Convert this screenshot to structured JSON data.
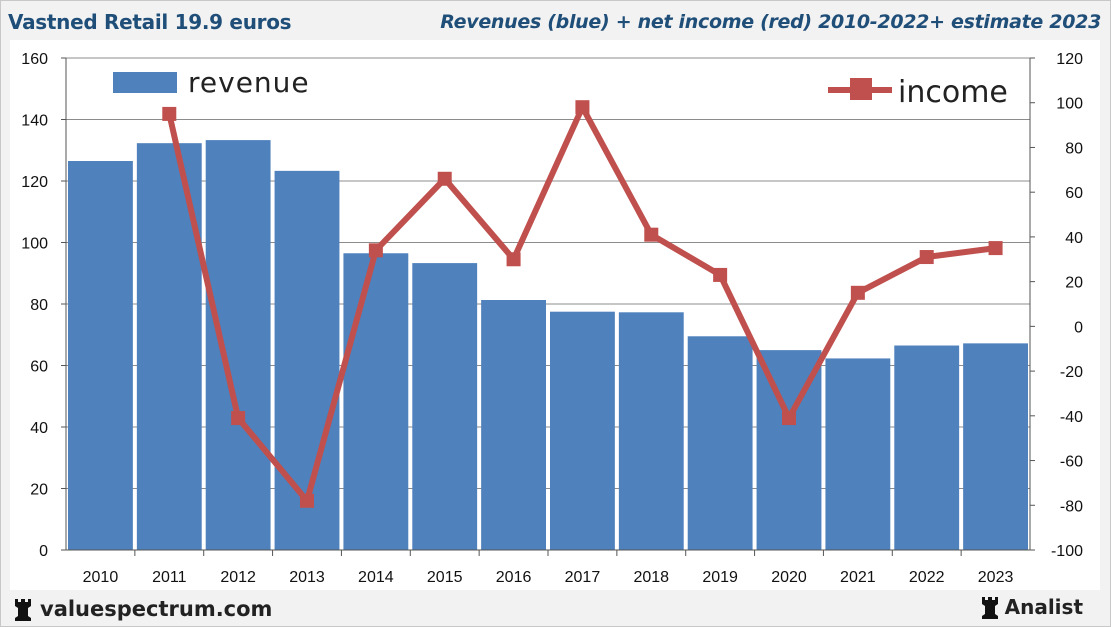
{
  "header": {
    "title_left": "Vastned Retail 19.9 euros",
    "title_right": "Revenues (blue) + net income (red) 2010-2022+ estimate 2023"
  },
  "footer": {
    "site": "valuespectrum.com",
    "brand": "Analist",
    "site_icon": "rook-icon",
    "brand_icon": "rook-icon"
  },
  "colors": {
    "revenue": "#4f81bd",
    "income": "#c0504d",
    "title": "#1f4e79"
  },
  "chart_data": {
    "type": "bar+line",
    "categories": [
      "2010",
      "2011",
      "2012",
      "2013",
      "2014",
      "2015",
      "2016",
      "2017",
      "2018",
      "2019",
      "2020",
      "2021",
      "2022",
      "2023"
    ],
    "series": [
      {
        "name": "revenue",
        "type": "bar",
        "axis": "left",
        "values": [
          126.5,
          132.3,
          133.3,
          123.3,
          96.5,
          93.3,
          81.3,
          77.5,
          77.3,
          69.5,
          65.0,
          62.3,
          66.5,
          67.2
        ]
      },
      {
        "name": "income",
        "type": "line",
        "axis": "right",
        "values": [
          null,
          95,
          -41,
          -78,
          34,
          66,
          30,
          98,
          41,
          23,
          -41,
          15,
          31,
          35
        ]
      }
    ],
    "y_left": {
      "min": 0,
      "max": 160,
      "ticks": [
        "0",
        "20",
        "40",
        "60",
        "80",
        "100",
        "120",
        "140",
        "160"
      ]
    },
    "y_right": {
      "min": -100,
      "max": 120,
      "ticks": [
        "-100",
        "-80",
        "-60",
        "-40",
        "-20",
        "0",
        "20",
        "40",
        "60",
        "80",
        "100",
        "120"
      ]
    },
    "legend": {
      "revenue_label": "revenue",
      "income_label": "income",
      "revenue_position": "top-left",
      "income_position": "top-right"
    },
    "grid": true
  }
}
